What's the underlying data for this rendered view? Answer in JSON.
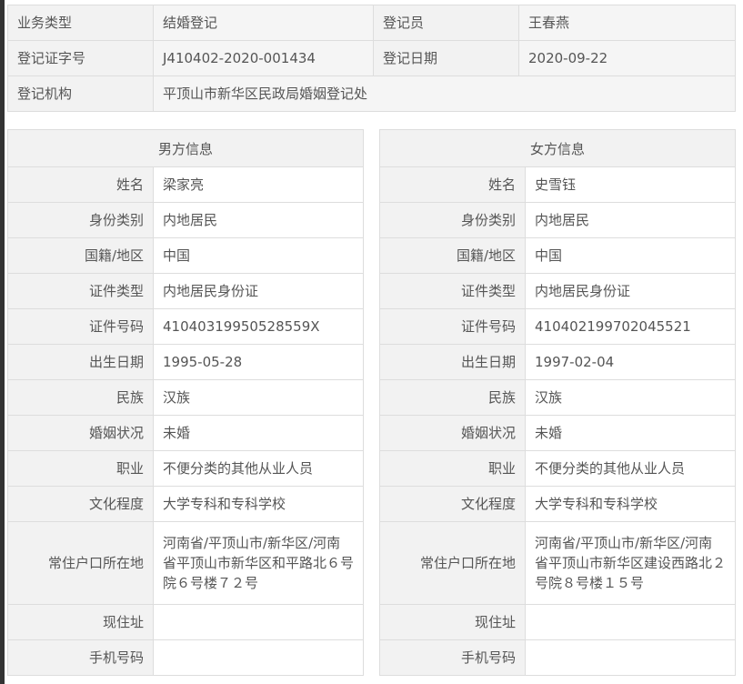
{
  "summary": {
    "business_type_label": "业务类型",
    "business_type": "结婚登记",
    "registrar_label": "登记员",
    "registrar": "王春燕",
    "cert_no_label": "登记证字号",
    "cert_no": "J410402-2020-001434",
    "date_label": "登记日期",
    "date": "2020-09-22",
    "office_label": "登记机构",
    "office": "平顶山市新华区民政局婚姻登记处"
  },
  "male": {
    "title": "男方信息",
    "rows": [
      {
        "label": "姓名",
        "value": "梁家亮"
      },
      {
        "label": "身份类别",
        "value": "内地居民"
      },
      {
        "label": "国籍/地区",
        "value": "中国"
      },
      {
        "label": "证件类型",
        "value": "内地居民身份证"
      },
      {
        "label": "证件号码",
        "value": "41040319950528559X"
      },
      {
        "label": "出生日期",
        "value": "1995-05-28"
      },
      {
        "label": "民族",
        "value": "汉族"
      },
      {
        "label": "婚姻状况",
        "value": "未婚"
      },
      {
        "label": "职业",
        "value": "不便分类的其他从业人员"
      },
      {
        "label": "文化程度",
        "value": "大学专科和专科学校"
      },
      {
        "label": "常住户口所在地",
        "value": "河南省/平顶山市/新华区/河南省平顶山市新华区和平路北６号院６号楼７２号"
      },
      {
        "label": "现住址",
        "value": ""
      },
      {
        "label": "手机号码",
        "value": ""
      }
    ]
  },
  "female": {
    "title": "女方信息",
    "rows": [
      {
        "label": "姓名",
        "value": "史雪钰"
      },
      {
        "label": "身份类别",
        "value": "内地居民"
      },
      {
        "label": "国籍/地区",
        "value": "中国"
      },
      {
        "label": "证件类型",
        "value": "内地居民身份证"
      },
      {
        "label": "证件号码",
        "value": "410402199702045521"
      },
      {
        "label": "出生日期",
        "value": "1997-02-04"
      },
      {
        "label": "民族",
        "value": "汉族"
      },
      {
        "label": "婚姻状况",
        "value": "未婚"
      },
      {
        "label": "职业",
        "value": "不便分类的其他从业人员"
      },
      {
        "label": "文化程度",
        "value": "大学专科和专科学校"
      },
      {
        "label": "常住户口所在地",
        "value": "河南省/平顶山市/新华区/河南省平顶山市新华区建设西路北２号院８号楼１５号"
      },
      {
        "label": "现住址",
        "value": ""
      },
      {
        "label": "手机号码",
        "value": ""
      }
    ]
  }
}
